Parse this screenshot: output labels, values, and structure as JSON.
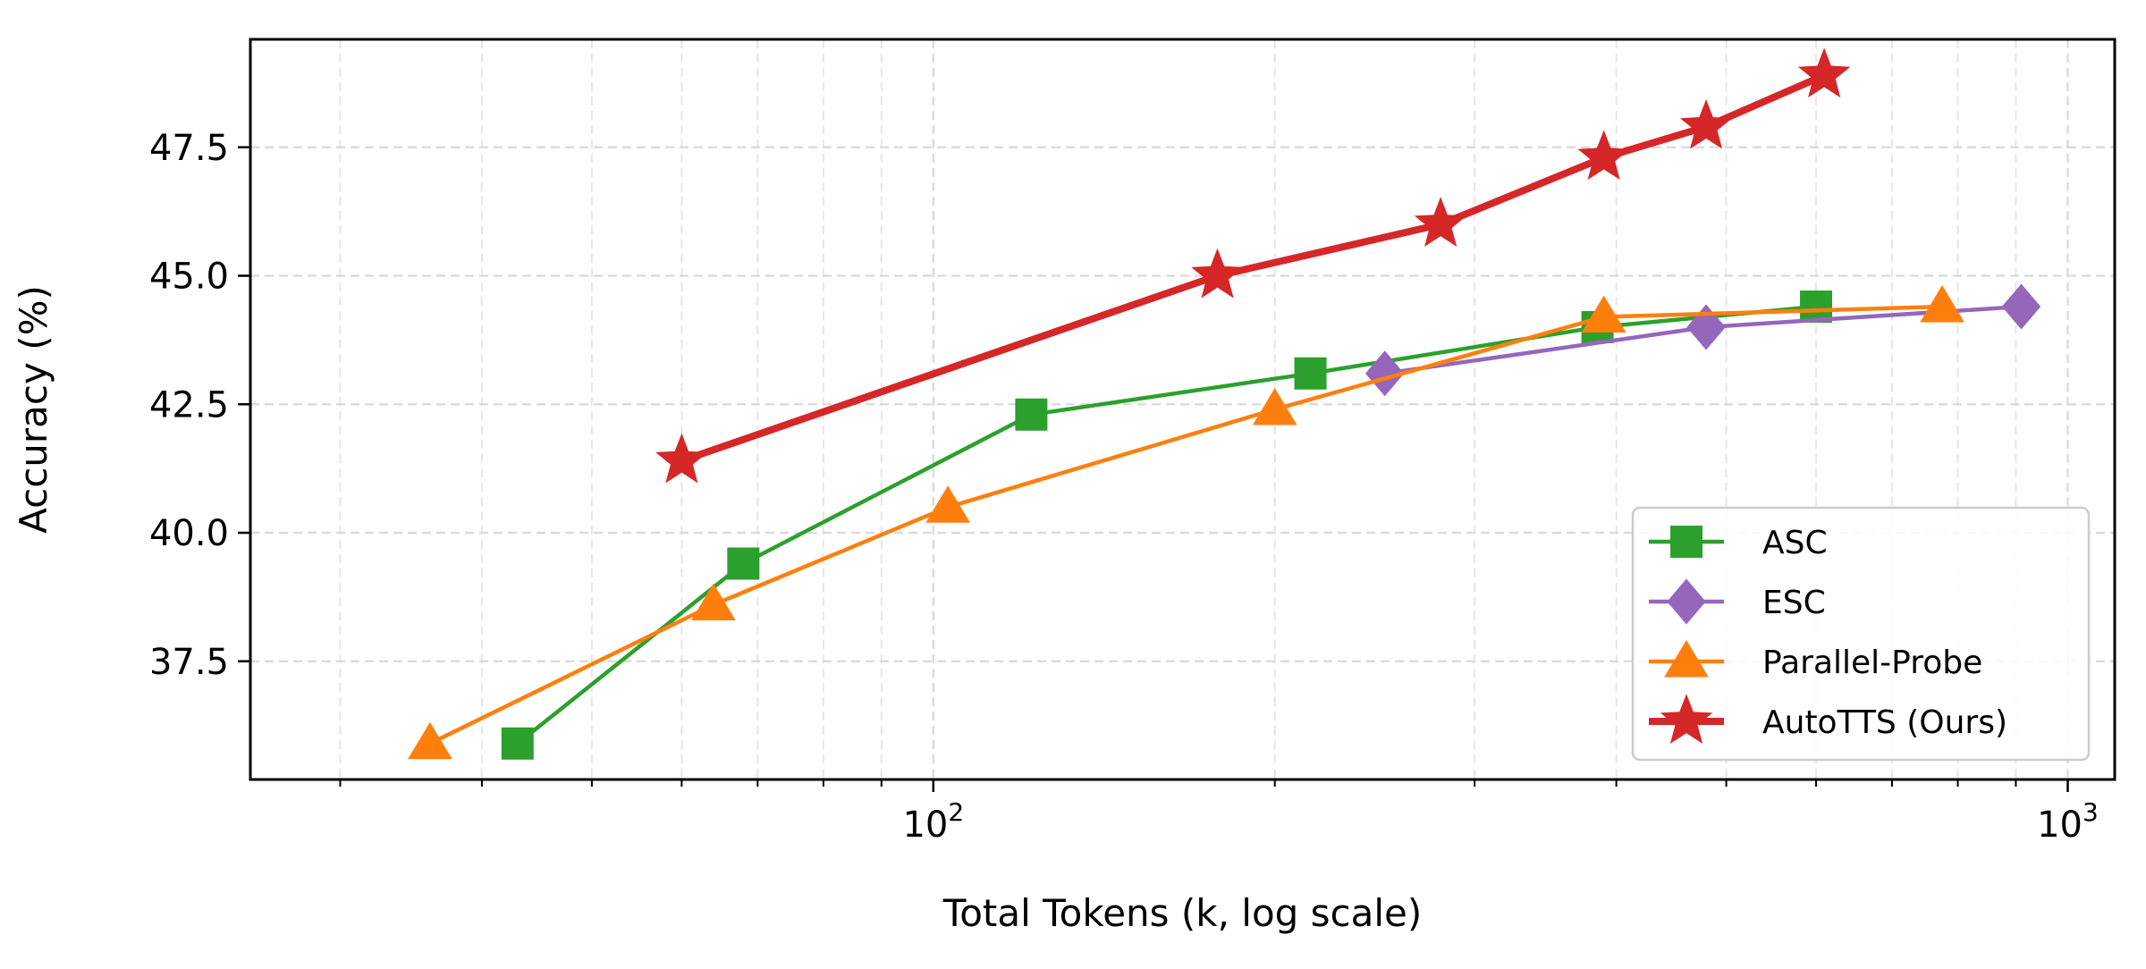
{
  "chart_data": {
    "type": "line",
    "xlabel": "Total Tokens (k, log scale)",
    "ylabel": "Accuracy (%)",
    "x_scale": "log",
    "xlim": [
      25,
      1100
    ],
    "ylim": [
      35.2,
      49.6
    ],
    "x_ticks": [
      {
        "value": 100,
        "base": "10",
        "exp": "2"
      },
      {
        "value": 1000,
        "base": "10",
        "exp": "3"
      }
    ],
    "y_ticks": [
      37.5,
      40.0,
      42.5,
      45.0,
      47.5
    ],
    "y_tick_labels": [
      "37.5",
      "40.0",
      "42.5",
      "45.0",
      "47.5"
    ],
    "grid": true,
    "legend_position": "lower-right",
    "series": [
      {
        "name": "ASC",
        "color": "#2ca02c",
        "marker": "square",
        "x": [
          43,
          68,
          122,
          215,
          385,
          600
        ],
        "y": [
          35.9,
          39.4,
          42.3,
          43.1,
          44.0,
          44.4
        ]
      },
      {
        "name": "ESC",
        "color": "#9467bd",
        "marker": "diamond",
        "x": [
          250,
          480,
          910
        ],
        "y": [
          43.1,
          44.0,
          44.4
        ]
      },
      {
        "name": "Parallel-Probe",
        "color": "#ff7f0e",
        "marker": "triangle",
        "x": [
          36,
          64,
          103,
          200,
          390,
          775
        ],
        "y": [
          35.9,
          38.6,
          40.5,
          42.4,
          44.2,
          44.4
        ]
      },
      {
        "name": "AutoTTS (Ours)",
        "color": "#d62728",
        "marker": "star",
        "x": [
          60,
          178,
          280,
          390,
          480,
          610
        ],
        "y": [
          41.4,
          45.0,
          46.0,
          47.3,
          47.9,
          48.9
        ]
      }
    ]
  }
}
